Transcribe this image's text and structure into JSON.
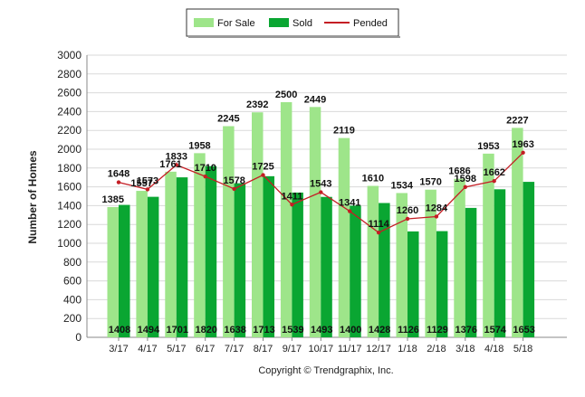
{
  "chart_data": {
    "type": "bar",
    "categories": [
      "3/17",
      "4/17",
      "5/17",
      "6/17",
      "7/17",
      "8/17",
      "9/17",
      "10/17",
      "11/17",
      "12/17",
      "1/18",
      "2/18",
      "3/18",
      "4/18",
      "5/18"
    ],
    "series": [
      {
        "name": "For Sale",
        "kind": "bar",
        "color": "#9ee58a",
        "values": [
          1385,
          1557,
          1761,
          1958,
          2245,
          2392,
          2500,
          2449,
          2119,
          1610,
          1534,
          1570,
          1686,
          1953,
          2227
        ]
      },
      {
        "name": "Sold",
        "kind": "bar",
        "color": "#0aa632",
        "values": [
          1408,
          1494,
          1701,
          1820,
          1638,
          1713,
          1539,
          1493,
          1400,
          1428,
          1126,
          1129,
          1376,
          1574,
          1653
        ]
      },
      {
        "name": "Pended",
        "kind": "line",
        "color": "#c41e24",
        "values": [
          1648,
          1573,
          1833,
          1710,
          1578,
          1725,
          1411,
          1543,
          1341,
          1114,
          1260,
          1284,
          1598,
          1662,
          1963
        ]
      }
    ],
    "ylabel": "Number of Homes",
    "xlabel": "",
    "ylim": [
      0,
      3000
    ],
    "yticks": [
      0,
      200,
      400,
      600,
      800,
      1000,
      1200,
      1400,
      1600,
      1800,
      2000,
      2200,
      2400,
      2600,
      2800,
      3000
    ],
    "grid": true,
    "legend_position": "top-center",
    "copyright": "Copyright © Trendgraphix, Inc."
  }
}
